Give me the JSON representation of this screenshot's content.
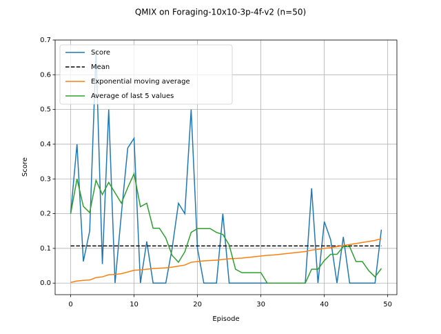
{
  "chart_data": {
    "type": "line",
    "title": "QMIX on Foraging-10x10-3p-4f-v2 (n=50)",
    "xlabel": "Episode",
    "ylabel": "Score",
    "x": [
      0,
      1,
      2,
      3,
      4,
      5,
      6,
      7,
      8,
      9,
      10,
      11,
      12,
      13,
      14,
      15,
      16,
      17,
      18,
      19,
      20,
      21,
      22,
      23,
      24,
      25,
      26,
      27,
      28,
      29,
      30,
      31,
      32,
      33,
      34,
      35,
      36,
      37,
      38,
      39,
      40,
      41,
      42,
      43,
      44,
      45,
      46,
      47,
      48,
      49
    ],
    "series": [
      {
        "name": "Score",
        "color": "#1f77b4",
        "dash": false,
        "values": [
          0.2,
          0.4,
          0.0625,
          0.15,
          0.667,
          0.055,
          0.5,
          0,
          0.2,
          0.389,
          0.417,
          0,
          0.12,
          0,
          0,
          0,
          0.1,
          0.23,
          0.2,
          0.5,
          0.1,
          0,
          0,
          0,
          0.2,
          0,
          0,
          0,
          0,
          0,
          0,
          0,
          0,
          0,
          0,
          0,
          0,
          0,
          0.273,
          0,
          0.177,
          0.125,
          0,
          0.133,
          0,
          0,
          0,
          0,
          0,
          0.154
        ]
      },
      {
        "name": "Mean",
        "color": "#000000",
        "dash": true,
        "values": [
          0.107,
          0.107,
          0.107,
          0.107,
          0.107,
          0.107,
          0.107,
          0.107,
          0.107,
          0.107,
          0.107,
          0.107,
          0.107,
          0.107,
          0.107,
          0.107,
          0.107,
          0.107,
          0.107,
          0.107,
          0.107,
          0.107,
          0.107,
          0.107,
          0.107,
          0.107,
          0.107,
          0.107,
          0.107,
          0.107,
          0.107,
          0.107,
          0.107,
          0.107,
          0.107,
          0.107,
          0.107,
          0.107,
          0.107,
          0.107,
          0.107,
          0.107,
          0.107,
          0.107,
          0.107,
          0.107,
          0.107,
          0.107,
          0.107,
          0.107
        ]
      },
      {
        "name": "Exponential moving average",
        "color": "#ff7f0e",
        "dash": false,
        "values": [
          0.002,
          0.006,
          0.008,
          0.009,
          0.016,
          0.018,
          0.024,
          0.025,
          0.027,
          0.032,
          0.037,
          0.038,
          0.04,
          0.042,
          0.043,
          0.044,
          0.046,
          0.049,
          0.052,
          0.06,
          0.062,
          0.064,
          0.065,
          0.066,
          0.068,
          0.07,
          0.071,
          0.072,
          0.074,
          0.076,
          0.078,
          0.08,
          0.081,
          0.083,
          0.085,
          0.087,
          0.089,
          0.091,
          0.095,
          0.097,
          0.1,
          0.102,
          0.105,
          0.108,
          0.111,
          0.114,
          0.117,
          0.12,
          0.123,
          0.128
        ]
      },
      {
        "name": "Average of last 5 values",
        "color": "#2ca02c",
        "dash": false,
        "values": [
          0.2,
          0.3,
          0.221,
          0.203,
          0.296,
          0.255,
          0.29,
          0.26,
          0.23,
          0.275,
          0.315,
          0.22,
          0.23,
          0.158,
          0.158,
          0.13,
          0.08,
          0.06,
          0.09,
          0.146,
          0.157,
          0.157,
          0.157,
          0.146,
          0.14,
          0.11,
          0.04,
          0.03,
          0.03,
          0.03,
          0.03,
          0,
          0,
          0,
          0,
          0,
          0,
          0,
          0.04,
          0.04,
          0.065,
          0.083,
          0.083,
          0.105,
          0.105,
          0.062,
          0.062,
          0.036,
          0.018,
          0.042
        ]
      }
    ],
    "xlim": [
      -2.45,
      51.45
    ],
    "xticks": [
      0,
      10,
      20,
      30,
      40,
      50
    ],
    "ylim": [
      -0.0333,
      0.7
    ],
    "yticks": [
      {
        "value": 0,
        "label": "0.0"
      },
      {
        "value": 0.1,
        "label": "0.1"
      },
      {
        "value": 0.2,
        "label": "0.2"
      },
      {
        "value": 0.3,
        "label": "0.3"
      },
      {
        "value": 0.4,
        "label": "0.4"
      },
      {
        "value": 0.5,
        "label": "0.5"
      },
      {
        "value": 0.6,
        "label": "0.6"
      },
      {
        "value": 0.7,
        "label": "0.7"
      }
    ],
    "grid": true,
    "legend": "upper left"
  }
}
